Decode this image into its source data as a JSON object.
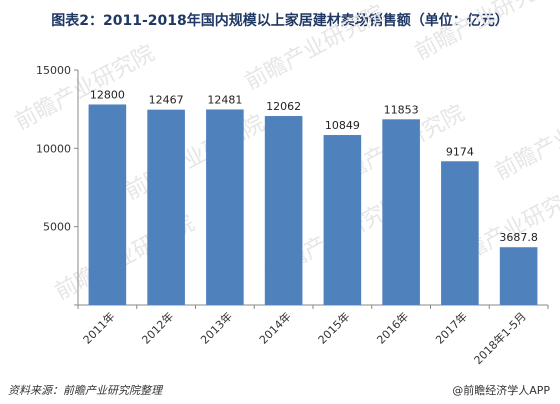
{
  "title": "图表2：2011-2018年国内规模以上家居建材卖场销售额（单位：亿元）",
  "source": "资料来源：前瞻产业研究院整理",
  "credit": "@前瞻经济学人APP",
  "watermark": "前瞻产业研究院",
  "chart_data": {
    "type": "bar",
    "title": "图表2：2011-2018年国内规模以上家居建材卖场销售额（单位：亿元）",
    "categories": [
      "2011年",
      "2012年",
      "2013年",
      "2014年",
      "2015年",
      "2016年",
      "2017年",
      "2018年1-5月"
    ],
    "values": [
      12800,
      12467,
      12481,
      12062,
      10849,
      11853,
      9174,
      3687.8
    ],
    "value_labels": [
      "12800",
      "12467",
      "12481",
      "12062",
      "10849",
      "11853",
      "9174",
      "3687.8"
    ],
    "ylim": [
      0,
      15000
    ],
    "yticks": [
      0,
      5000,
      10000,
      15000
    ],
    "ytick_labels": [
      "",
      "5000",
      "10000",
      "15000"
    ],
    "bar_color": "#4f81bd",
    "grid": false,
    "legend": "none"
  }
}
